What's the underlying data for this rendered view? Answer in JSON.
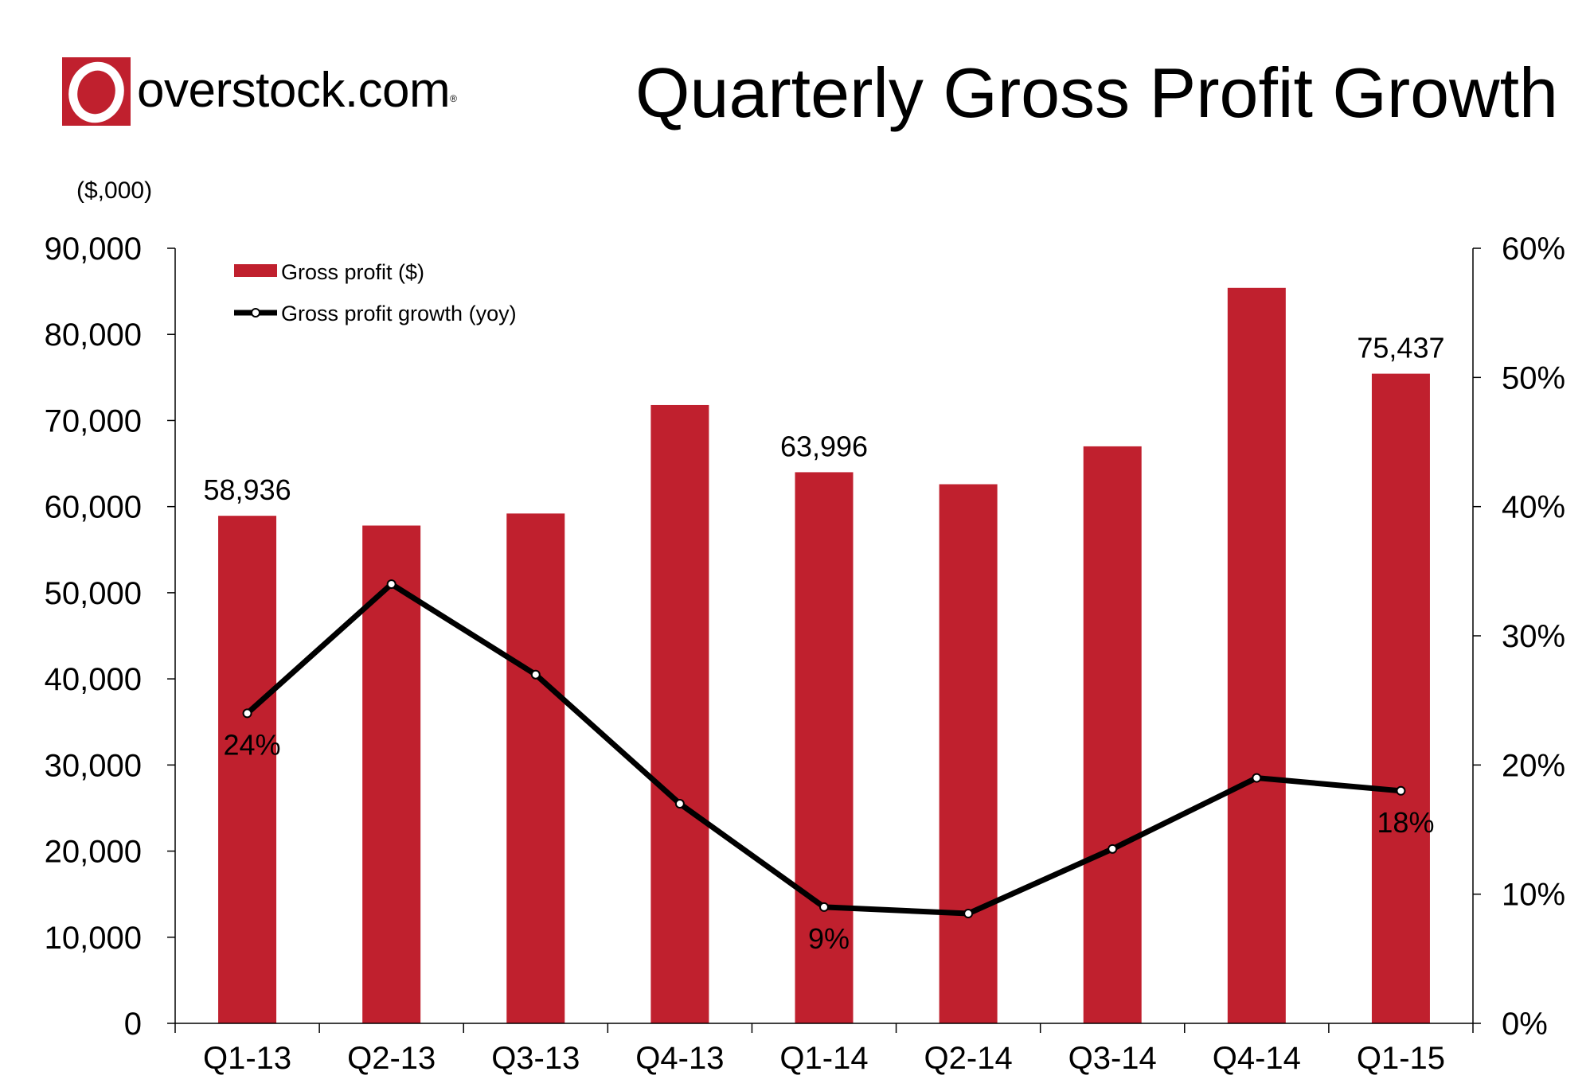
{
  "brand": {
    "name": "overstock.com",
    "mark": "registered",
    "color": "#c0202e"
  },
  "header": {
    "title": "Quarterly Gross Profit Growth"
  },
  "chart_data": {
    "type": "bar",
    "title": "Quarterly Gross Profit Growth",
    "units_label": "($,000)",
    "categories": [
      "Q1-13",
      "Q2-13",
      "Q3-13",
      "Q4-13",
      "Q1-14",
      "Q2-14",
      "Q3-14",
      "Q4-14",
      "Q1-15"
    ],
    "series": [
      {
        "name": "Gross profit ($)",
        "type": "bar",
        "axis": "left",
        "color": "#c0202e",
        "values": [
          58936,
          57800,
          59200,
          71800,
          63996,
          62600,
          67000,
          85400,
          75437
        ]
      },
      {
        "name": "Gross profit growth (yoy)",
        "type": "line",
        "axis": "right",
        "color": "#000000",
        "values": [
          24,
          34,
          27,
          17,
          9,
          8.5,
          13.5,
          19,
          18
        ]
      }
    ],
    "data_labels": {
      "bars": [
        {
          "index": 0,
          "text": "58,936"
        },
        {
          "index": 4,
          "text": "63,996"
        },
        {
          "index": 8,
          "text": "75,437"
        }
      ],
      "line": [
        {
          "index": 0,
          "text": "24%"
        },
        {
          "index": 4,
          "text": "9%"
        },
        {
          "index": 8,
          "text": "18%"
        }
      ]
    },
    "y_left": {
      "ylim": [
        0,
        90000
      ],
      "ticks": [
        0,
        10000,
        20000,
        30000,
        40000,
        50000,
        60000,
        70000,
        80000,
        90000
      ],
      "tick_labels": [
        "0",
        "10,000",
        "20,000",
        "30,000",
        "40,000",
        "50,000",
        "60,000",
        "70,000",
        "80,000",
        "90,000"
      ]
    },
    "y_right": {
      "ylim": [
        0,
        60
      ],
      "ticks": [
        0,
        10,
        20,
        30,
        40,
        50,
        60
      ],
      "tick_labels": [
        "0%",
        "10%",
        "20%",
        "30%",
        "40%",
        "50%",
        "60%"
      ]
    },
    "legend": {
      "position": "top-left"
    },
    "grid": false
  }
}
